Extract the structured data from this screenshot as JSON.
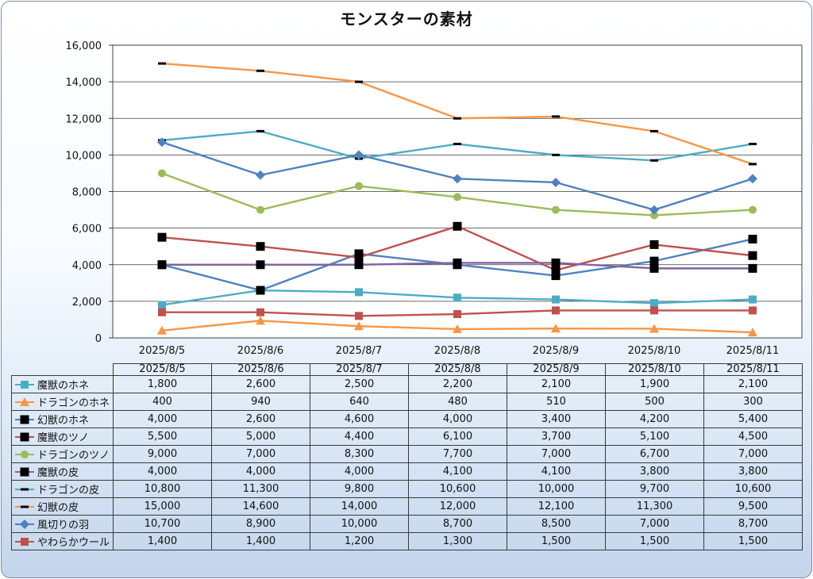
{
  "chart_data": {
    "type": "line",
    "title": "モンスターの素材",
    "categories": [
      "2025/8/5",
      "2025/8/6",
      "2025/8/7",
      "2025/8/8",
      "2025/8/9",
      "2025/8/10",
      "2025/8/11"
    ],
    "ylim": [
      0,
      16000
    ],
    "yticks": [
      "0",
      "2,000",
      "4,000",
      "6,000",
      "8,000",
      "10,000",
      "12,000",
      "14,000",
      "16,000"
    ],
    "grid": "horizontal",
    "legend": "data-table",
    "series": [
      {
        "name": "魔獣のホネ",
        "color": "#4bacc6",
        "marker": "square",
        "values": [
          1800,
          2600,
          2500,
          2200,
          2100,
          1900,
          2100
        ],
        "labels": [
          "1,800",
          "2,600",
          "2,500",
          "2,200",
          "2,100",
          "1,900",
          "2,100"
        ]
      },
      {
        "name": "ドラゴンのホネ",
        "color": "#f79646",
        "marker": "triangle",
        "values": [
          400,
          940,
          640,
          480,
          510,
          500,
          300
        ],
        "labels": [
          "400",
          "940",
          "640",
          "480",
          "510",
          "500",
          "300"
        ]
      },
      {
        "name": "幻獣のホネ",
        "color": "#4f81bd",
        "marker": "bigsquare",
        "values": [
          4000,
          2600,
          4600,
          4000,
          3400,
          4200,
          5400
        ],
        "labels": [
          "4,000",
          "2,600",
          "4,600",
          "4,000",
          "3,400",
          "4,200",
          "5,400"
        ]
      },
      {
        "name": "魔獣のツノ",
        "color": "#c0504d",
        "marker": "bigsquare",
        "values": [
          5500,
          5000,
          4400,
          6100,
          3700,
          5100,
          4500
        ],
        "labels": [
          "5,500",
          "5,000",
          "4,400",
          "6,100",
          "3,700",
          "5,100",
          "4,500"
        ]
      },
      {
        "name": "ドラゴンのツノ",
        "color": "#9bbb59",
        "marker": "circle",
        "values": [
          9000,
          7000,
          8300,
          7700,
          7000,
          6700,
          7000
        ],
        "labels": [
          "9,000",
          "7,000",
          "8,300",
          "7,700",
          "7,000",
          "6,700",
          "7,000"
        ]
      },
      {
        "name": "魔獣の皮",
        "color": "#8064a2",
        "marker": "bigsquare",
        "values": [
          4000,
          4000,
          4000,
          4100,
          4100,
          3800,
          3800
        ],
        "labels": [
          "4,000",
          "4,000",
          "4,000",
          "4,100",
          "4,100",
          "3,800",
          "3,800"
        ]
      },
      {
        "name": "ドラゴンの皮",
        "color": "#4bacc6",
        "marker": "dash",
        "values": [
          10800,
          11300,
          9800,
          10600,
          10000,
          9700,
          10600
        ],
        "labels": [
          "10,800",
          "11,300",
          "9,800",
          "10,600",
          "10,000",
          "9,700",
          "10,600"
        ]
      },
      {
        "name": "幻獣の皮",
        "color": "#f79646",
        "marker": "dash",
        "values": [
          15000,
          14600,
          14000,
          12000,
          12100,
          11300,
          9500
        ],
        "labels": [
          "15,000",
          "14,600",
          "14,000",
          "12,000",
          "12,100",
          "11,300",
          "9,500"
        ]
      },
      {
        "name": "風切りの羽",
        "color": "#4f81bd",
        "marker": "diamond",
        "values": [
          10700,
          8900,
          10000,
          8700,
          8500,
          7000,
          8700
        ],
        "labels": [
          "10,700",
          "8,900",
          "10,000",
          "8,700",
          "8,500",
          "7,000",
          "8,700"
        ]
      },
      {
        "name": "やわらかウール",
        "color": "#c0504d",
        "marker": "square",
        "values": [
          1400,
          1400,
          1200,
          1300,
          1500,
          1500,
          1500
        ],
        "labels": [
          "1,400",
          "1,400",
          "1,200",
          "1,300",
          "1,500",
          "1,500",
          "1,500"
        ]
      }
    ]
  }
}
